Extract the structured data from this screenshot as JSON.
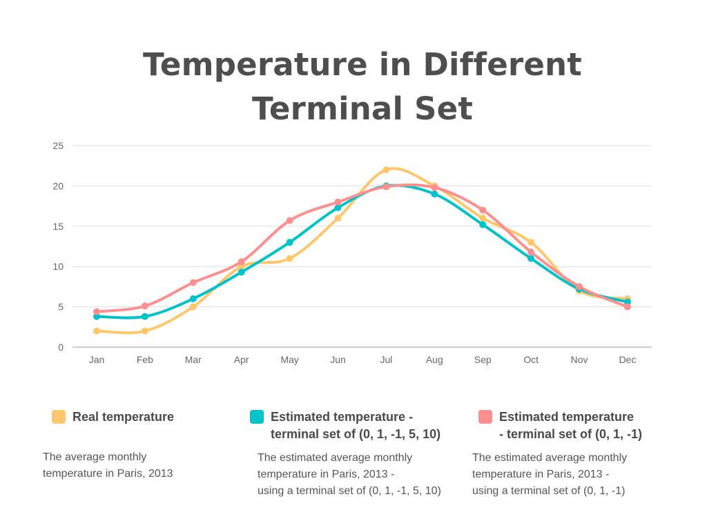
{
  "title": {
    "line1": "Temperature in Different",
    "line2": "Terminal Set"
  },
  "legend": [
    {
      "label": "Real temperature",
      "description": "The average monthly\ntemperature in Paris, 2013",
      "color": "#ffc66b"
    },
    {
      "label": "Estimated temperature -\nterminal set of (0, 1, -1, 5, 10)",
      "description": "The estimated average monthly\ntemperature in Paris, 2013 -\nusing a terminal set of (0, 1, -1, 5, 10)",
      "color": "#00c2cb"
    },
    {
      "label": "Estimated temperature\n- terminal set of (0, 1, -1)",
      "description": "The estimated average monthly\ntemperature in Paris, 2013 -\nusing a terminal set of (0, 1, -1)",
      "color": "#ff8f8f"
    }
  ],
  "chart_data": {
    "type": "line",
    "title": "Temperature in Different Terminal Set",
    "categories": [
      "Jan",
      "Feb",
      "Mar",
      "Apr",
      "May",
      "Jun",
      "Jul",
      "Aug",
      "Sep",
      "Oct",
      "Nov",
      "Dec"
    ],
    "ylim": [
      0,
      25
    ],
    "yticks": [
      0,
      5,
      10,
      15,
      20,
      25
    ],
    "grid": true,
    "legend_position": "bottom",
    "series": [
      {
        "name": "Real temperature",
        "color": "#ffc66b",
        "values": [
          2,
          2,
          5,
          10,
          11,
          16,
          22,
          20,
          16,
          13,
          7,
          6
        ]
      },
      {
        "name": "Estimated temperature - terminal set of (0, 1, -1, 5, 10)",
        "color": "#00c2cb",
        "values": [
          3.8,
          3.8,
          6,
          9.3,
          13,
          17.3,
          20,
          19,
          15.2,
          11,
          7.2,
          5.6
        ]
      },
      {
        "name": "Estimated temperature - terminal set of (0, 1, -1)",
        "color": "#ff8f8f",
        "values": [
          4.4,
          5.1,
          8,
          10.6,
          15.7,
          18,
          19.9,
          19.8,
          17,
          11.8,
          7.5,
          5
        ]
      }
    ]
  }
}
